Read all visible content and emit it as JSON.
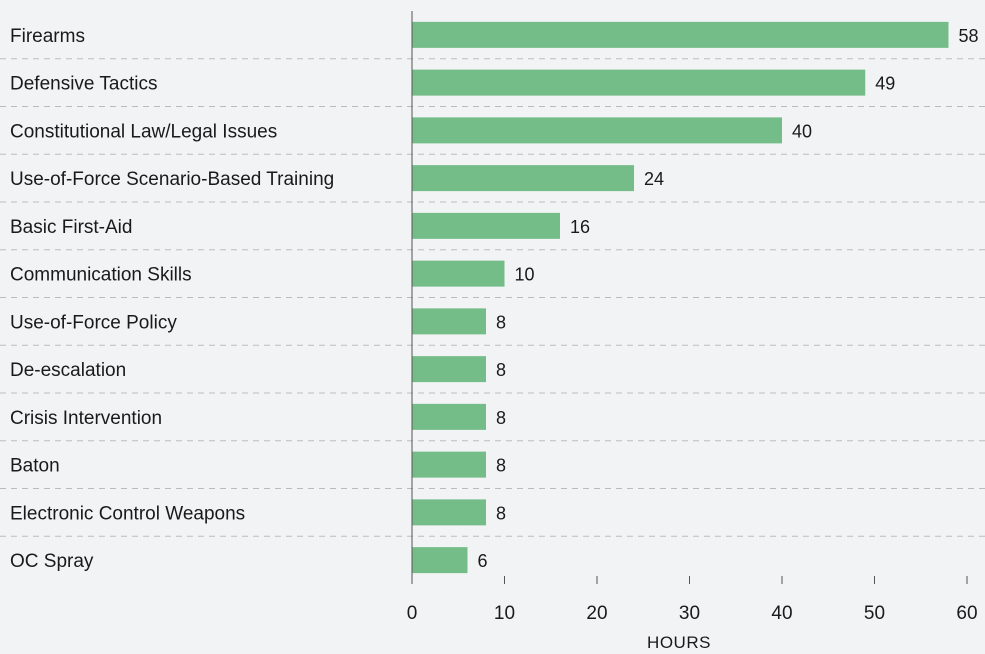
{
  "chart_data": {
    "type": "bar",
    "orientation": "horizontal",
    "categories": [
      "Firearms",
      "Defensive Tactics",
      "Constitutional Law/Legal Issues",
      "Use-of-Force Scenario-Based Training",
      "Basic First-Aid",
      "Communication Skills",
      "Use-of-Force Policy",
      "De-escalation",
      "Crisis Intervention",
      "Baton",
      "Electronic Control Weapons",
      "OC Spray"
    ],
    "values": [
      58,
      49,
      40,
      24,
      16,
      10,
      8,
      8,
      8,
      8,
      8,
      6
    ],
    "xlabel": "HOURS",
    "ylabel": "",
    "xlim": [
      0,
      60
    ],
    "xticks": [
      0,
      10,
      20,
      30,
      40,
      50,
      60
    ],
    "grid": "dashed horizontal separators between rows",
    "legend": "none",
    "bar_color": "#74bd89",
    "separator_color": "#b9bcbf",
    "axis_color": "#555555"
  }
}
